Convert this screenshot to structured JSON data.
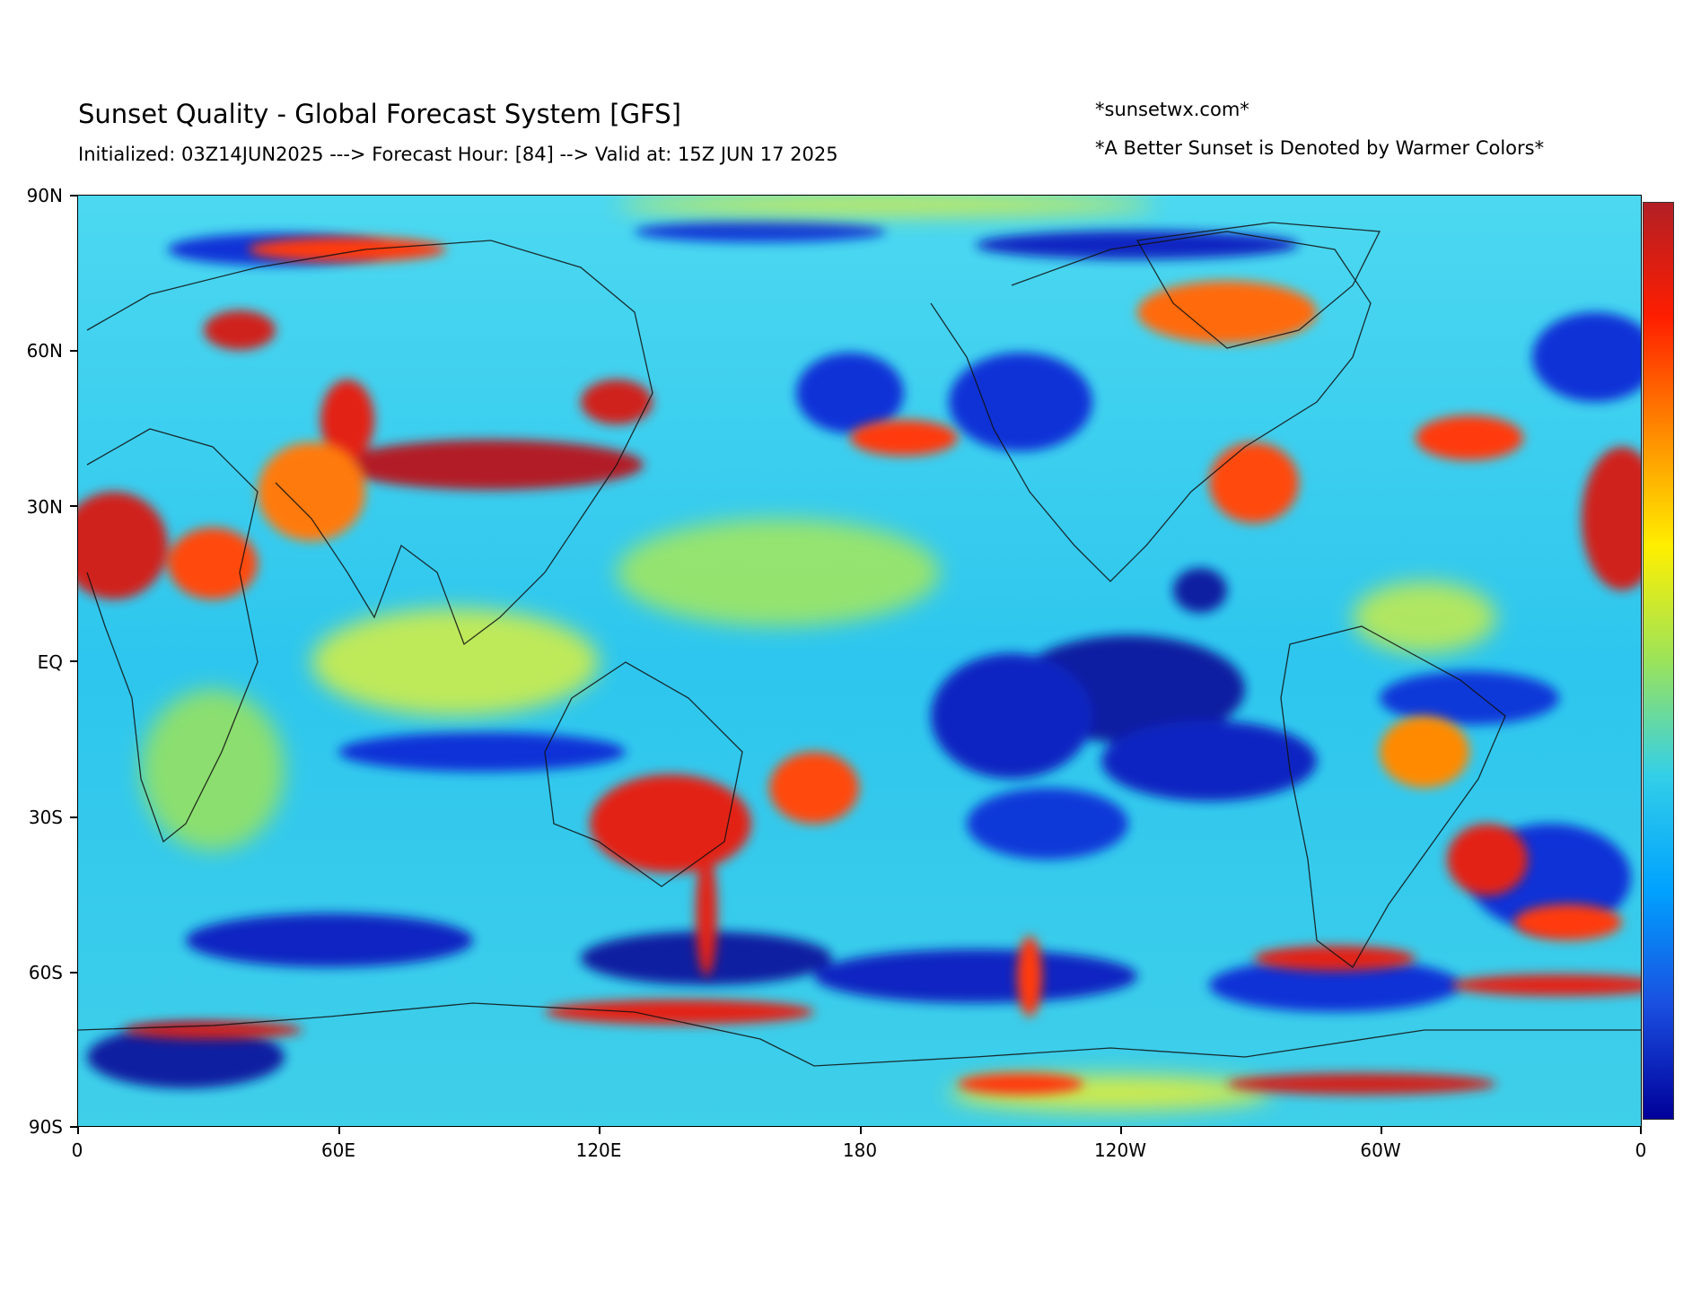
{
  "header": {
    "title": "Sunset Quality - Global Forecast System [GFS]",
    "subtitle": "Initialized: 03Z14JUN2025 ---> Forecast Hour: [84] --> Valid at: 15Z JUN 17 2025",
    "site": "*sunsetwx.com*",
    "note": "*A Better Sunset is Denoted by Warmer Colors*"
  },
  "map": {
    "lat_labels": [
      "90N",
      "60N",
      "30N",
      "EQ",
      "30S",
      "60S",
      "90S"
    ],
    "lon_labels": [
      "0",
      "60E",
      "120E",
      "180",
      "120W",
      "60W",
      "0"
    ]
  },
  "colorbar": {
    "colors": [
      "#b21f25",
      "#ff1e00",
      "#ff8a00",
      "#ffef00",
      "#9be35a",
      "#33cfe8",
      "#00a2ff",
      "#1a4fe0",
      "#00009a"
    ]
  }
}
